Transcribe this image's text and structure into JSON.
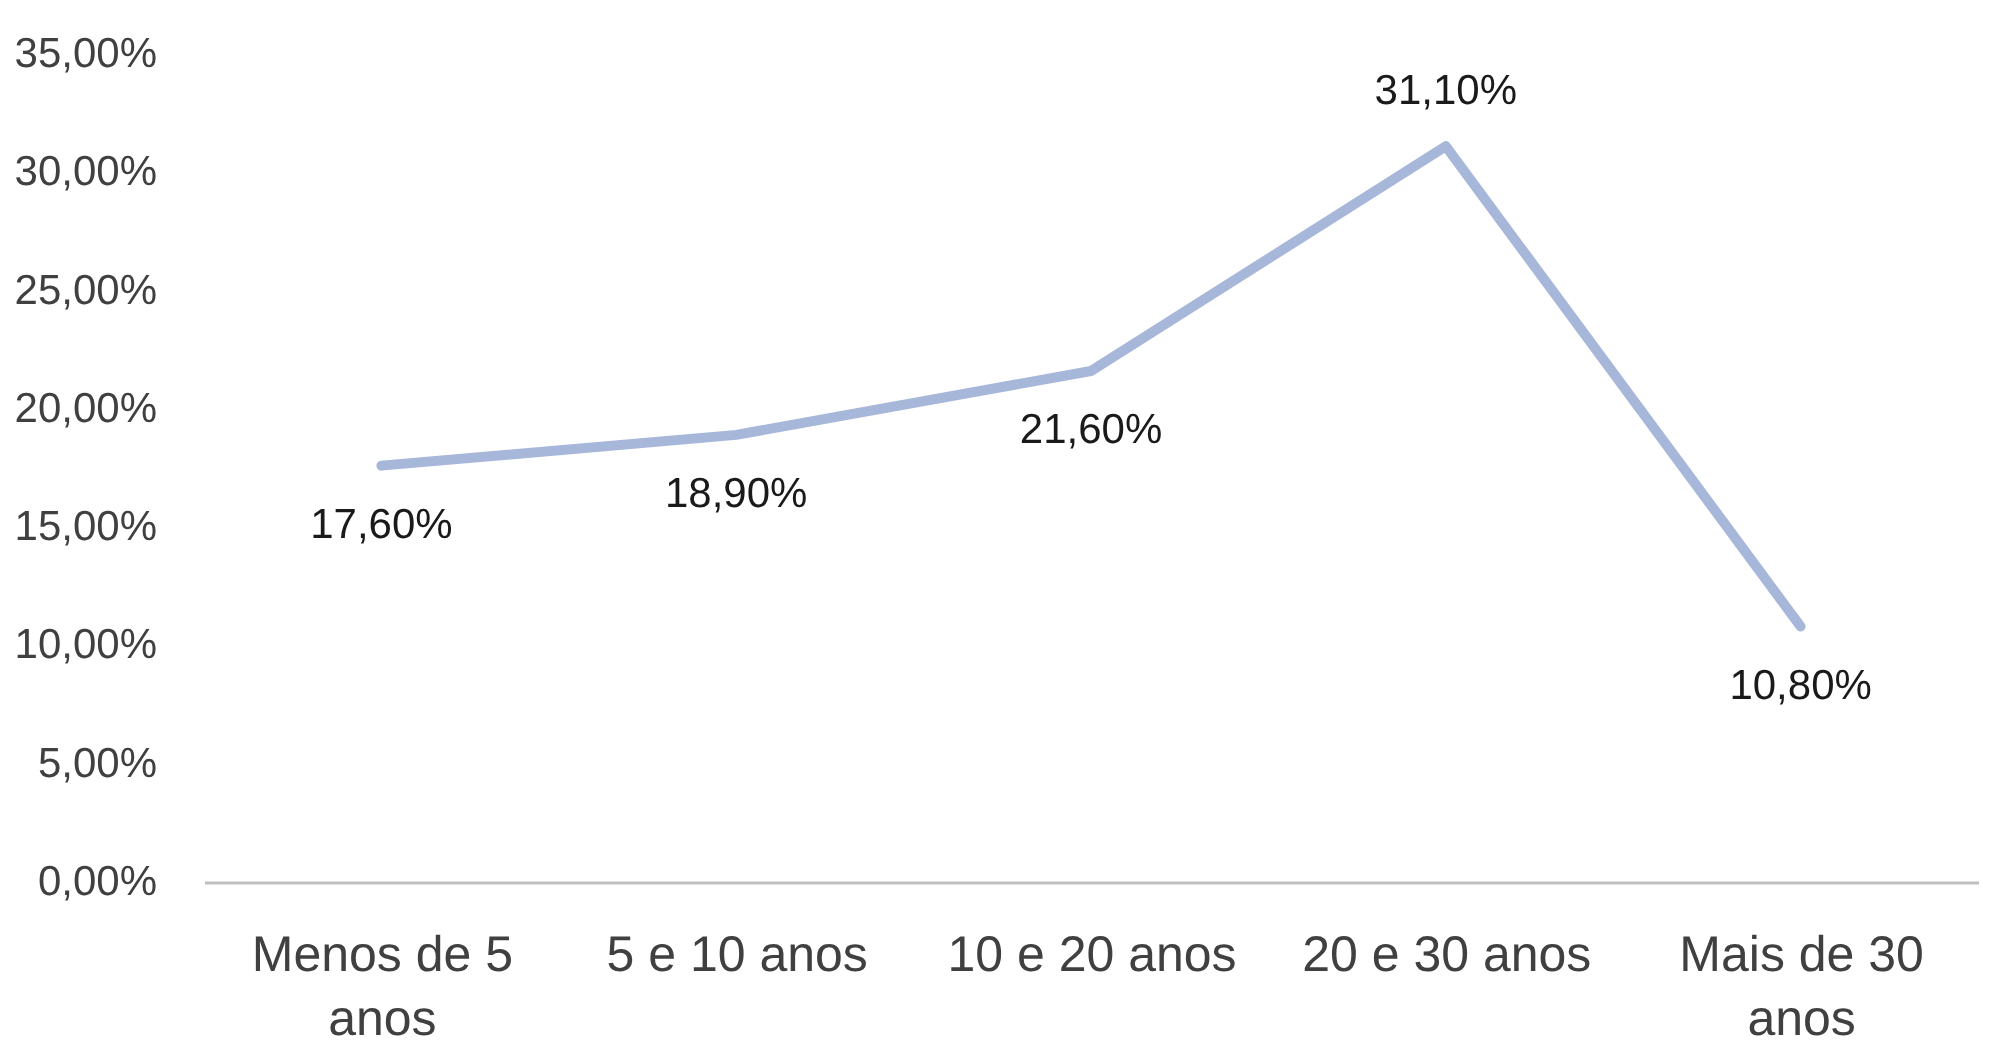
{
  "chart_data": {
    "type": "line",
    "categories": [
      "Menos de 5 anos",
      "5 e 10 anos",
      "10 e 20 anos",
      "20 e 30 anos",
      "Mais de 30 anos"
    ],
    "values": [
      17.6,
      18.9,
      21.6,
      31.1,
      10.8
    ],
    "color": "#a7b7da",
    "value_labels": [
      "17,60%",
      "18,90%",
      "21,60%",
      "31,10%",
      "10,80%"
    ],
    "ylim": [
      0,
      35
    ],
    "yticks": [
      {
        "value": 0,
        "label": "0,00%"
      },
      {
        "value": 5,
        "label": "5,00%"
      },
      {
        "value": 10,
        "label": "10,00%"
      },
      {
        "value": 15,
        "label": "15,00%"
      },
      {
        "value": 20,
        "label": "20,00%"
      },
      {
        "value": 25,
        "label": "25,00%"
      },
      {
        "value": 30,
        "label": "30,00%"
      },
      {
        "value": 35,
        "label": "35,00%"
      }
    ],
    "line_style": "solid"
  }
}
